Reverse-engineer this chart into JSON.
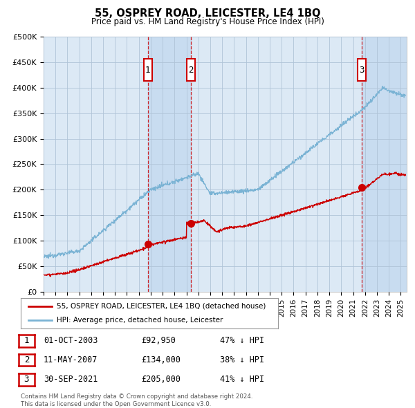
{
  "title": "55, OSPREY ROAD, LEICESTER, LE4 1BQ",
  "subtitle": "Price paid vs. HM Land Registry's House Price Index (HPI)",
  "ylim": [
    0,
    500000
  ],
  "yticks": [
    0,
    50000,
    100000,
    150000,
    200000,
    250000,
    300000,
    350000,
    400000,
    450000,
    500000
  ],
  "ytick_labels": [
    "£0",
    "£50K",
    "£100K",
    "£150K",
    "£200K",
    "£250K",
    "£300K",
    "£350K",
    "£400K",
    "£450K",
    "£500K"
  ],
  "xlim_start": 1995.0,
  "xlim_end": 2025.5,
  "hpi_color": "#7ab3d4",
  "price_color": "#cc0000",
  "background_color": "#ffffff",
  "plot_bg_color": "#dce9f5",
  "grid_color": "#b0c4d8",
  "shaded_color": "#c8dcf0",
  "sale_points": [
    {
      "date_num": 2003.75,
      "price": 92950,
      "label": "1"
    },
    {
      "date_num": 2007.36,
      "price": 134000,
      "label": "2"
    },
    {
      "date_num": 2021.75,
      "price": 205000,
      "label": "3"
    }
  ],
  "legend_entries": [
    "55, OSPREY ROAD, LEICESTER, LE4 1BQ (detached house)",
    "HPI: Average price, detached house, Leicester"
  ],
  "table_rows": [
    {
      "num": "1",
      "date": "01-OCT-2003",
      "price": "£92,950",
      "hpi": "47% ↓ HPI"
    },
    {
      "num": "2",
      "date": "11-MAY-2007",
      "price": "£134,000",
      "hpi": "38% ↓ HPI"
    },
    {
      "num": "3",
      "date": "30-SEP-2021",
      "price": "£205,000",
      "hpi": "41% ↓ HPI"
    }
  ],
  "footnote": "Contains HM Land Registry data © Crown copyright and database right 2024.\nThis data is licensed under the Open Government Licence v3.0."
}
